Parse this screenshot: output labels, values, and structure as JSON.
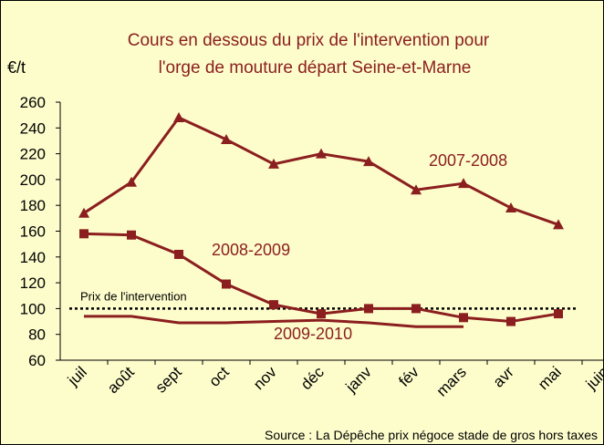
{
  "chart_data": {
    "type": "line",
    "title_lines": [
      "Cours en dessous du prix de l'intervention pour",
      "l'orge de mouture départ Seine-et-Marne"
    ],
    "y_label": "€/t",
    "categories": [
      "juil",
      "août",
      "sept",
      "oct",
      "nov",
      "déc",
      "janv",
      "fév",
      "mars",
      "avr",
      "mai",
      "juin"
    ],
    "series": [
      {
        "name": "2007-2008",
        "color": "#8b1e1e",
        "marker": "triangle",
        "values": [
          174,
          198,
          248,
          231,
          212,
          220,
          214,
          192,
          197,
          178,
          165,
          null
        ]
      },
      {
        "name": "2008-2009",
        "color": "#8b1e1e",
        "marker": "square",
        "values": [
          158,
          157,
          142,
          119,
          103,
          96,
          100,
          100,
          93,
          90,
          96,
          null
        ]
      },
      {
        "name": "2009-2010",
        "color": "#8b1e1e",
        "marker": "none",
        "values": [
          94,
          94,
          89,
          89,
          90,
          91,
          89,
          86,
          86,
          null,
          null,
          null
        ]
      }
    ],
    "reference_line": {
      "label": "Prix de l'intervention",
      "value": 100
    },
    "ylim": [
      60,
      260
    ],
    "yticks": [
      60,
      80,
      100,
      120,
      140,
      160,
      180,
      200,
      220,
      240,
      260
    ],
    "grid": false,
    "background": "#fdfdcc",
    "source": "Source : La Dépêche prix négoce stade de gros hors taxes"
  }
}
